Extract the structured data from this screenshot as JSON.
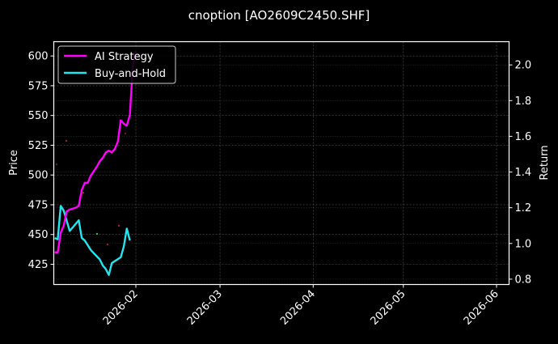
{
  "chart_data": {
    "type": "line",
    "title": "cnoption [AO2609C2450.SHF]",
    "xlabel": "",
    "ylabel": "Price",
    "y2label": "Return",
    "grid": true,
    "legend_position": "upper left",
    "x_tick_labels": [
      "2026-02",
      "2026-03",
      "2026-04",
      "2026-05",
      "2026-06"
    ],
    "y_ticks": [
      425,
      450,
      475,
      500,
      525,
      550,
      575,
      600
    ],
    "y2_ticks": [
      "0.8",
      "1.0",
      "1.2",
      "1.4",
      "1.6",
      "1.8",
      "2.0"
    ],
    "ylim": [
      408,
      612
    ],
    "y2lim": [
      0.77,
      2.13
    ],
    "series": [
      {
        "name": "AI Strategy",
        "axis": "right",
        "color": "#ff00ff",
        "points": [
          [
            "2026-01-05",
            0.95
          ],
          [
            "2026-01-06",
            0.95
          ],
          [
            "2026-01-07",
            1.06
          ],
          [
            "2026-01-08",
            1.1
          ],
          [
            "2026-01-09",
            1.18
          ],
          [
            "2026-01-10",
            1.19
          ],
          [
            "2026-01-12",
            1.2
          ],
          [
            "2026-01-13",
            1.21
          ],
          [
            "2026-01-14",
            1.3
          ],
          [
            "2026-01-15",
            1.34
          ],
          [
            "2026-01-16",
            1.34
          ],
          [
            "2026-01-17",
            1.38
          ],
          [
            "2026-01-19",
            1.43
          ],
          [
            "2026-01-20",
            1.46
          ],
          [
            "2026-01-21",
            1.48
          ],
          [
            "2026-01-22",
            1.51
          ],
          [
            "2026-01-23",
            1.52
          ],
          [
            "2026-01-24",
            1.51
          ],
          [
            "2026-01-25",
            1.53
          ],
          [
            "2026-01-26",
            1.57
          ],
          [
            "2026-01-27",
            1.69
          ],
          [
            "2026-01-28",
            1.67
          ],
          [
            "2026-01-29",
            1.66
          ],
          [
            "2026-01-30",
            1.72
          ],
          [
            "2026-01-31",
            2.0
          ],
          [
            "2026-02-01",
            2.08
          ]
        ]
      },
      {
        "name": "Buy-and-Hold",
        "axis": "left",
        "color": "#22e5ee",
        "points": [
          [
            "2026-01-05",
            447
          ],
          [
            "2026-01-06",
            446
          ],
          [
            "2026-01-07",
            474
          ],
          [
            "2026-01-08",
            470
          ],
          [
            "2026-01-10",
            453
          ],
          [
            "2026-01-13",
            462
          ],
          [
            "2026-01-14",
            447
          ],
          [
            "2026-01-15",
            445
          ],
          [
            "2026-01-17",
            437
          ],
          [
            "2026-01-20",
            429
          ],
          [
            "2026-01-21",
            424
          ],
          [
            "2026-01-22",
            421
          ],
          [
            "2026-01-23",
            416
          ],
          [
            "2026-01-24",
            426
          ],
          [
            "2026-01-27",
            431
          ],
          [
            "2026-01-28",
            440
          ],
          [
            "2026-01-29",
            455
          ],
          [
            "2026-01-30",
            445
          ]
        ]
      }
    ]
  },
  "legend": {
    "items": [
      {
        "label": "AI Strategy",
        "color": "#ff00ff"
      },
      {
        "label": "Buy-and-Hold",
        "color": "#22e5ee"
      }
    ]
  }
}
